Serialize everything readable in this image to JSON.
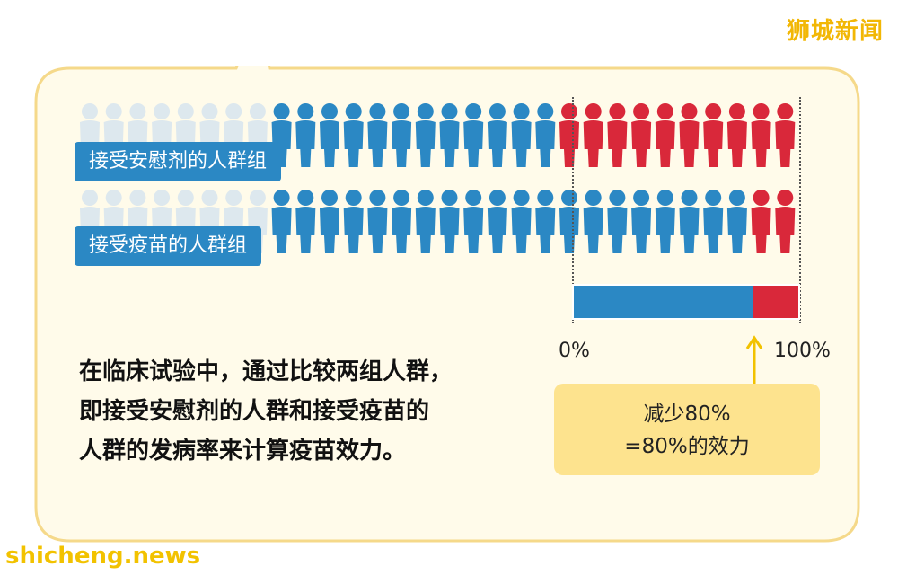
{
  "watermark": {
    "top": "狮城新闻",
    "bottom": "shicheng.news"
  },
  "groups": {
    "placebo": {
      "label": "接受安慰剂的人群组",
      "total": 30,
      "sick": 10
    },
    "vaccine": {
      "label": "接受疫苗的人群组",
      "total": 30,
      "sick": 2
    }
  },
  "colors": {
    "healthy": "#2b88c4",
    "sick": "#d9283a",
    "faded": "#dde8ee",
    "bubble_border": "#f5d98a",
    "bubble_fill": "#fffbea"
  },
  "scale": {
    "min_label": "0%",
    "max_label": "100%",
    "reduction_fraction": 0.8
  },
  "callout": {
    "line1": "减少80%",
    "line2": "=80%的效力"
  },
  "description": {
    "line1": "在临床试验中，通过比较两组人群，",
    "line2": "即接受安慰剂的人群和接受疫苗的",
    "line3": "人群的发病率来计算疫苗效力。"
  }
}
